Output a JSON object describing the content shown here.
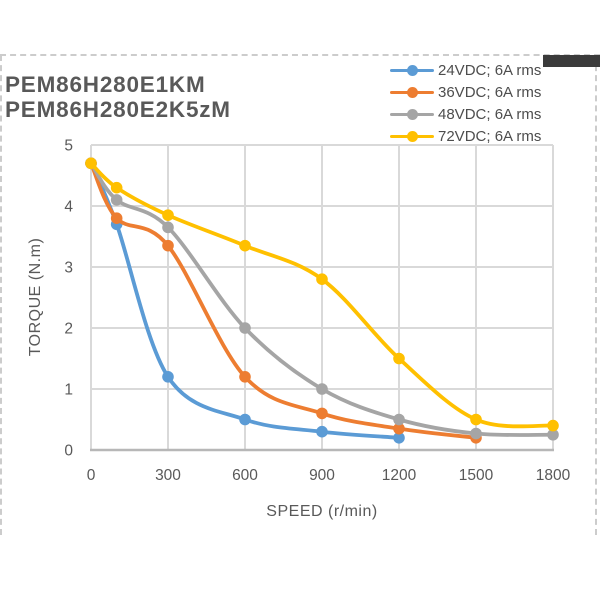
{
  "page": {
    "title_line1": "PEM86H280E1KM",
    "title_line2": "PEM86H280E2K5zM"
  },
  "chart_data": {
    "type": "line",
    "title": "",
    "xlabel": "SPEED (r/min)",
    "ylabel": "TORQUE (N.m)",
    "xlim": [
      0,
      1800
    ],
    "ylim": [
      0,
      5
    ],
    "xticks": [
      0,
      300,
      600,
      900,
      1200,
      1500,
      1800
    ],
    "yticks": [
      0,
      1,
      2,
      3,
      4,
      5
    ],
    "grid": true,
    "line_style": "smooth",
    "legend_position": "top-right",
    "series": [
      {
        "name": "24VDC; 6A rms",
        "color": "#5B9BD5",
        "points": [
          [
            0,
            4.7
          ],
          [
            100,
            3.7
          ],
          [
            300,
            1.2
          ],
          [
            600,
            0.5
          ],
          [
            900,
            0.3
          ],
          [
            1200,
            0.2
          ]
        ]
      },
      {
        "name": "36VDC; 6A rms",
        "color": "#ED7D31",
        "points": [
          [
            0,
            4.7
          ],
          [
            100,
            3.8
          ],
          [
            300,
            3.35
          ],
          [
            600,
            1.2
          ],
          [
            900,
            0.6
          ],
          [
            1200,
            0.35
          ],
          [
            1500,
            0.2
          ]
        ]
      },
      {
        "name": "48VDC; 6A rms",
        "color": "#A5A5A5",
        "points": [
          [
            0,
            4.7
          ],
          [
            100,
            4.1
          ],
          [
            300,
            3.65
          ],
          [
            600,
            2.0
          ],
          [
            900,
            1.0
          ],
          [
            1200,
            0.5
          ],
          [
            1500,
            0.27
          ],
          [
            1800,
            0.25
          ]
        ]
      },
      {
        "name": "72VDC; 6A rms",
        "color": "#FFC000",
        "points": [
          [
            0,
            4.7
          ],
          [
            100,
            4.3
          ],
          [
            300,
            3.85
          ],
          [
            600,
            3.35
          ],
          [
            900,
            2.8
          ],
          [
            1200,
            1.5
          ],
          [
            1500,
            0.5
          ],
          [
            1800,
            0.4
          ]
        ]
      }
    ]
  },
  "decorations": {
    "dashed_border_color": "#cccccc",
    "dark_bar_color": "#3b3b3b",
    "grid_color": "#d9d9d9",
    "axis_color": "#b7b7b7",
    "text_color": "#595959"
  }
}
